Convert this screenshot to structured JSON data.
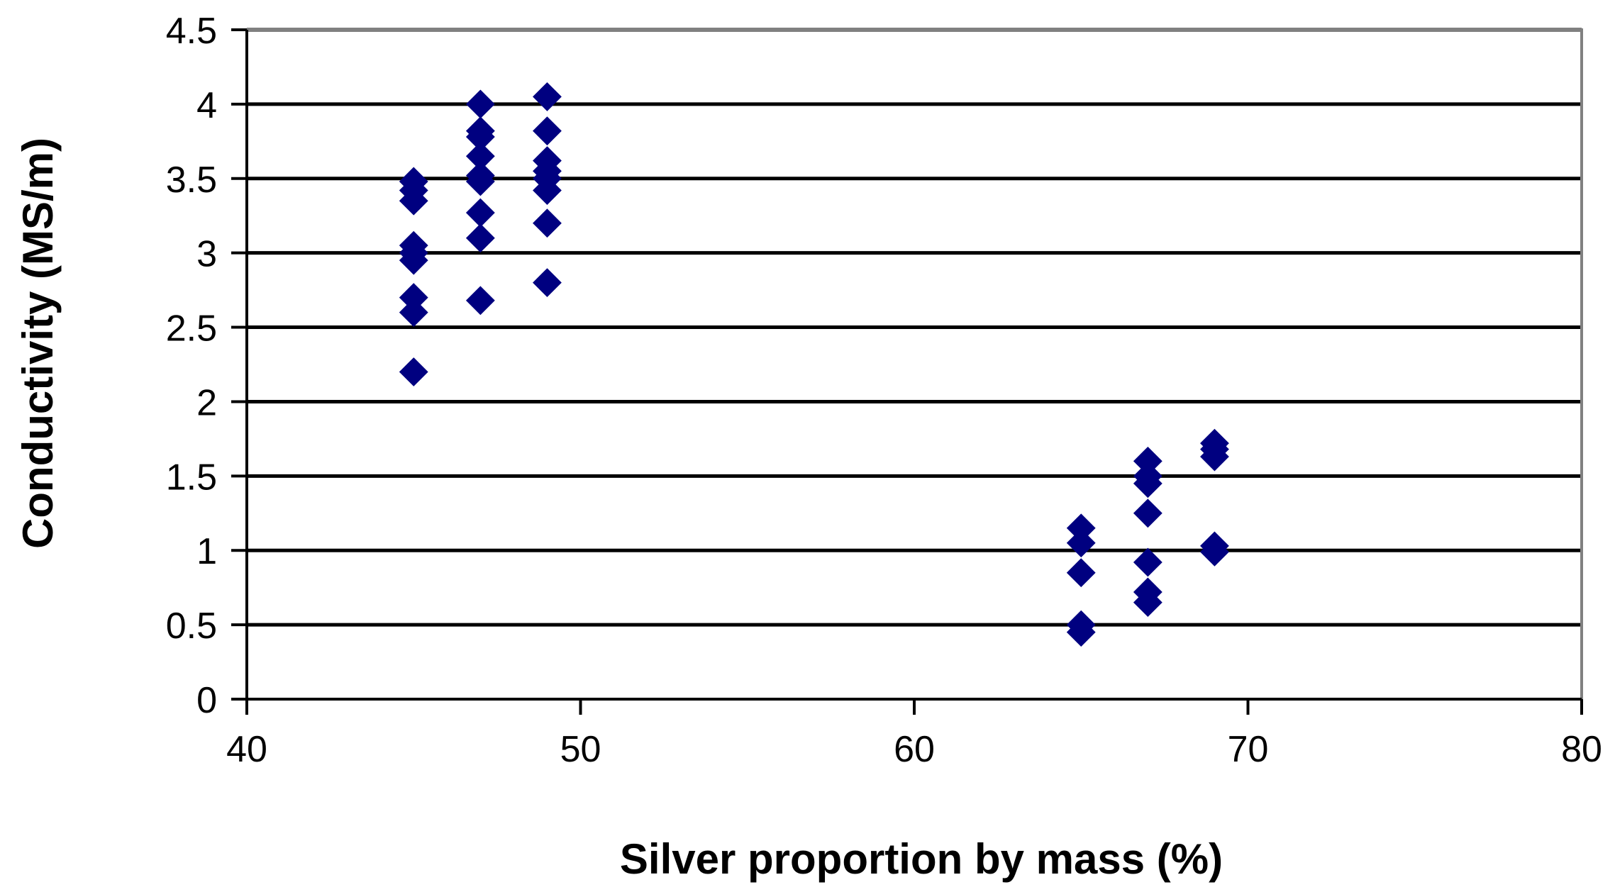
{
  "chart_data": {
    "type": "scatter",
    "title": "",
    "xlabel": "Silver proportion by mass (%)",
    "ylabel": "Conductivity (MS/m)",
    "xlim": [
      40,
      80
    ],
    "ylim": [
      0,
      4.5
    ],
    "x_ticks": [
      40,
      50,
      60,
      70,
      80
    ],
    "y_ticks": [
      0,
      0.5,
      1,
      1.5,
      2,
      2.5,
      3,
      3.5,
      4,
      4.5
    ],
    "x_tick_labels": [
      "40",
      "50",
      "60",
      "70",
      "80"
    ],
    "y_tick_labels": [
      "0",
      "0.5",
      "1",
      "1.5",
      "2",
      "2.5",
      "3",
      "3.5",
      "4",
      "4.5"
    ],
    "grid": "horizontal",
    "legend": "none",
    "marker": "diamond",
    "colors": {
      "marker": "#000080",
      "grid": "#000000",
      "axis": "#000000",
      "plot_border": "#808080"
    },
    "series": [
      {
        "points": [
          [
            45,
            3.48
          ],
          [
            45,
            3.42
          ],
          [
            45,
            3.35
          ],
          [
            45,
            3.05
          ],
          [
            45,
            3.0
          ],
          [
            45,
            2.95
          ],
          [
            45,
            2.7
          ],
          [
            45,
            2.6
          ],
          [
            45,
            2.2
          ],
          [
            47,
            4.0
          ],
          [
            47,
            3.82
          ],
          [
            47,
            3.78
          ],
          [
            47,
            3.65
          ],
          [
            47,
            3.52
          ],
          [
            47,
            3.48
          ],
          [
            47,
            3.27
          ],
          [
            47,
            3.1
          ],
          [
            47,
            2.68
          ],
          [
            49,
            4.05
          ],
          [
            49,
            3.82
          ],
          [
            49,
            3.62
          ],
          [
            49,
            3.55
          ],
          [
            49,
            3.5
          ],
          [
            49,
            3.42
          ],
          [
            49,
            3.2
          ],
          [
            49,
            2.8
          ],
          [
            65,
            1.15
          ],
          [
            65,
            1.05
          ],
          [
            65,
            0.85
          ],
          [
            65,
            0.5
          ],
          [
            65,
            0.45
          ],
          [
            67,
            1.6
          ],
          [
            67,
            1.5
          ],
          [
            67,
            1.45
          ],
          [
            67,
            1.25
          ],
          [
            67,
            0.92
          ],
          [
            67,
            0.72
          ],
          [
            67,
            0.65
          ],
          [
            69,
            1.72
          ],
          [
            69,
            1.68
          ],
          [
            69,
            1.63
          ],
          [
            69,
            1.03
          ],
          [
            69,
            0.99
          ]
        ]
      }
    ]
  }
}
